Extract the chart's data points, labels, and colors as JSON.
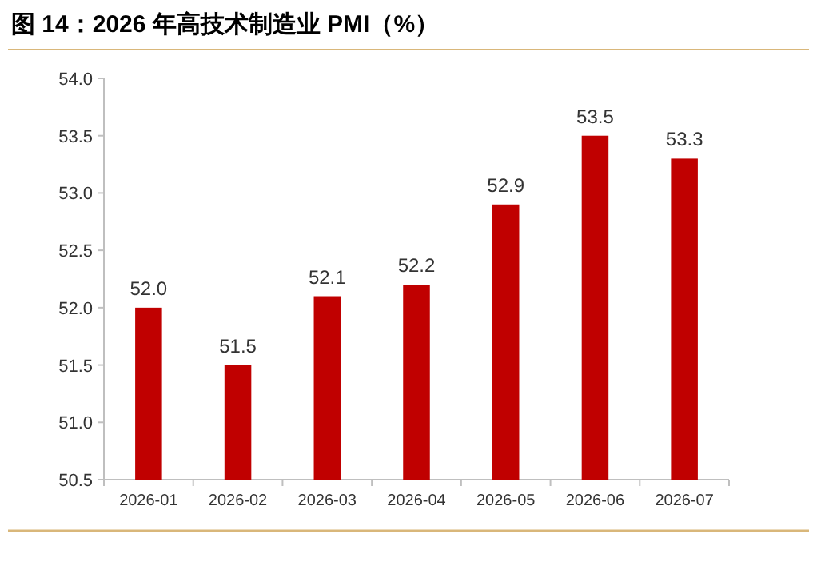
{
  "chart_data": {
    "type": "bar",
    "title": "图 14：2026 年高技术制造业 PMI（%）",
    "categories": [
      "2026-01",
      "2026-02",
      "2026-03",
      "2026-04",
      "2026-05",
      "2026-06",
      "2026-07"
    ],
    "values": [
      52.0,
      51.5,
      52.1,
      52.2,
      52.9,
      53.5,
      53.3
    ],
    "value_labels": [
      "52.0",
      "51.5",
      "52.1",
      "52.2",
      "52.9",
      "53.5",
      "53.3"
    ],
    "color": "#c00000",
    "ylim": [
      50.5,
      54.0
    ],
    "yticks": [
      50.5,
      {
        "value": 51,
        "label": "51.0"
      },
      51.5,
      {
        "value": 52,
        "label": "52.0"
      },
      52.5,
      {
        "value": 53,
        "label": "53.0"
      },
      53.5,
      {
        "value": 54,
        "label": "54.0"
      }
    ]
  }
}
